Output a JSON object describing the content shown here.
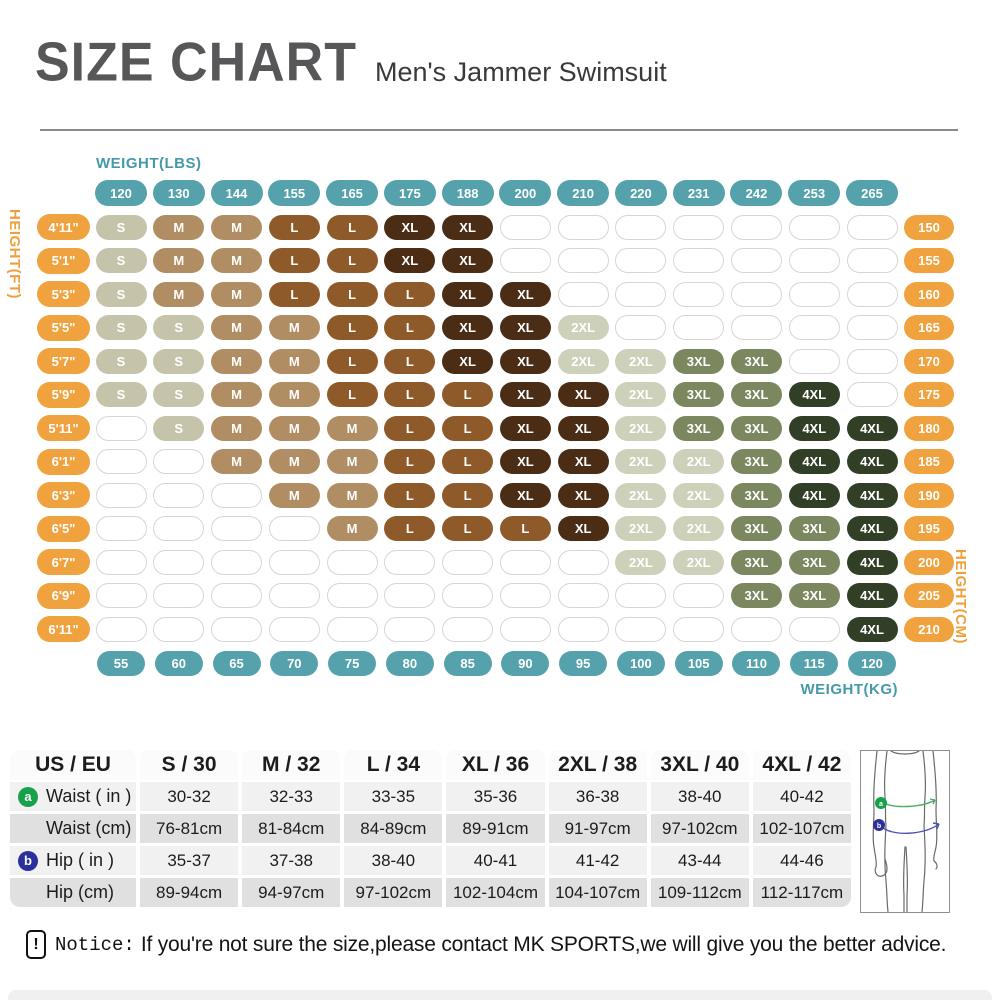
{
  "header": {
    "title": "SIZE CHART",
    "subtitle": "Men's Jammer Swimsuit"
  },
  "size_colors": {
    "S": "#c6c3ab",
    "M": "#b08d62",
    "L": "#8f5a2a",
    "XL": "#4b2d16",
    "2XL": "#cdd1b9",
    "3XL": "#7b875f",
    "4XL": "#313f27"
  },
  "accent_colors": {
    "weight_pill": "#55a2ad",
    "weight_label": "#459aaa",
    "height_pill": "#efa23e",
    "height_label": "#ef9f3b",
    "empty_fill": "#ffffff",
    "empty_border": "#d6d6d6",
    "waist_marker": "#18a14b",
    "hip_marker": "#2c309c"
  },
  "chart_data": [
    {
      "type": "heatmap",
      "title": "SIZE CHART",
      "subtitle": "Men's Jammer Swimsuit",
      "x_label_top": "WEIGHT(LBS)",
      "x_label_bottom": "WEIGHT(KG)",
      "y_label_left": "HEIGHT(FT)",
      "y_label_right": "HEIGHT(CM)",
      "weights_lbs": [
        "120",
        "130",
        "144",
        "155",
        "165",
        "175",
        "188",
        "200",
        "210",
        "220",
        "231",
        "242",
        "253",
        "265"
      ],
      "weights_kg": [
        "55",
        "60",
        "65",
        "70",
        "75",
        "80",
        "85",
        "90",
        "95",
        "100",
        "105",
        "110",
        "115",
        "120"
      ],
      "heights_ft": [
        "4'11\"",
        "5'1\"",
        "5'3\"",
        "5'5\"",
        "5'7\"",
        "5'9\"",
        "5'11\"",
        "6'1\"",
        "6'3\"",
        "6'5\"",
        "6'7\"",
        "6'9\"",
        "6'11\""
      ],
      "heights_cm": [
        "150",
        "155",
        "160",
        "165",
        "170",
        "175",
        "180",
        "185",
        "190",
        "195",
        "200",
        "205",
        "210"
      ],
      "cells": [
        [
          "S",
          "M",
          "M",
          "L",
          "L",
          "XL",
          "XL",
          null,
          null,
          null,
          null,
          null,
          null,
          null
        ],
        [
          "S",
          "M",
          "M",
          "L",
          "L",
          "XL",
          "XL",
          null,
          null,
          null,
          null,
          null,
          null,
          null
        ],
        [
          "S",
          "M",
          "M",
          "L",
          "L",
          "L",
          "XL",
          "XL",
          null,
          null,
          null,
          null,
          null,
          null
        ],
        [
          "S",
          "S",
          "M",
          "M",
          "L",
          "L",
          "XL",
          "XL",
          "2XL",
          null,
          null,
          null,
          null,
          null
        ],
        [
          "S",
          "S",
          "M",
          "M",
          "L",
          "L",
          "XL",
          "XL",
          "2XL",
          "2XL",
          "3XL",
          "3XL",
          null,
          null
        ],
        [
          "S",
          "S",
          "M",
          "M",
          "L",
          "L",
          "L",
          "XL",
          "XL",
          "2XL",
          "3XL",
          "3XL",
          "4XL",
          null
        ],
        [
          null,
          "S",
          "M",
          "M",
          "M",
          "L",
          "L",
          "XL",
          "XL",
          "2XL",
          "3XL",
          "3XL",
          "4XL",
          "4XL"
        ],
        [
          null,
          null,
          "M",
          "M",
          "M",
          "L",
          "L",
          "XL",
          "XL",
          "2XL",
          "2XL",
          "3XL",
          "4XL",
          "4XL"
        ],
        [
          null,
          null,
          null,
          "M",
          "M",
          "L",
          "L",
          "XL",
          "XL",
          "2XL",
          "2XL",
          "3XL",
          "4XL",
          "4XL"
        ],
        [
          null,
          null,
          null,
          null,
          "M",
          "L",
          "L",
          "L",
          "XL",
          "2XL",
          "2XL",
          "3XL",
          "3XL",
          "4XL"
        ],
        [
          null,
          null,
          null,
          null,
          null,
          null,
          null,
          null,
          null,
          "2XL",
          "2XL",
          "3XL",
          "3XL",
          "4XL"
        ],
        [
          null,
          null,
          null,
          null,
          null,
          null,
          null,
          null,
          null,
          null,
          null,
          "3XL",
          "3XL",
          "4XL"
        ],
        [
          null,
          null,
          null,
          null,
          null,
          null,
          null,
          null,
          null,
          null,
          null,
          null,
          null,
          "4XL"
        ]
      ]
    },
    {
      "type": "table",
      "columns": [
        "US / EU",
        "S / 30",
        "M / 32",
        "L / 34",
        "XL / 36",
        "2XL / 38",
        "3XL / 40",
        "4XL / 42"
      ],
      "rows": [
        {
          "marker": "a",
          "label": "Waist ( in )",
          "values": [
            "30-32",
            "32-33",
            "33-35",
            "35-36",
            "36-38",
            "38-40",
            "40-42"
          ]
        },
        {
          "marker": null,
          "label": "Waist (cm)",
          "values": [
            "76-81cm",
            "81-84cm",
            "84-89cm",
            "89-91cm",
            "91-97cm",
            "97-102cm",
            "102-107cm"
          ]
        },
        {
          "marker": "b",
          "label": "Hip ( in )",
          "values": [
            "35-37",
            "37-38",
            "38-40",
            "40-41",
            "41-42",
            "43-44",
            "44-46"
          ]
        },
        {
          "marker": null,
          "label": "Hip (cm)",
          "values": [
            "89-94cm",
            "94-97cm",
            "97-102cm",
            "102-104cm",
            "104-107cm",
            "109-112cm",
            "112-117cm"
          ]
        }
      ]
    }
  ],
  "notice": {
    "label": "Notice:",
    "text": "If you're not sure the size,please contact MK SPORTS,we will give you the better advice."
  }
}
